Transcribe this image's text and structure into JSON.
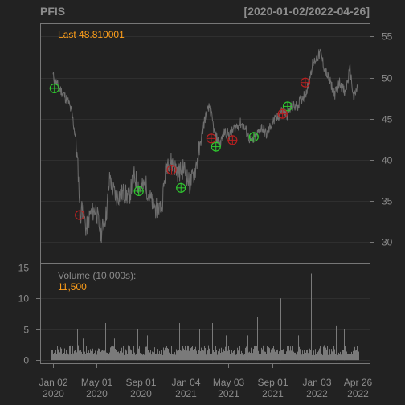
{
  "chart_data": {
    "type": "line",
    "title": "PFIS",
    "date_range": "[2020-01-02/2022-04-26]",
    "colors": {
      "background": "#222222",
      "panel_border": "#777777",
      "grid": "#2f2f2f",
      "text": "#8c8c8c",
      "accent": "#ff9f1a",
      "price_line": "#6e6e6e",
      "volume_bar": "#7a7a7a",
      "buy_marker": "#2fc82f",
      "sell_marker": "#b92020"
    },
    "price_panel": {
      "last_label": "Last 48.810001",
      "y_ticks": [
        30,
        35,
        40,
        45,
        50,
        55
      ],
      "ylim": [
        27.5,
        56.5
      ],
      "grid": true,
      "series": [
        {
          "x": [
            "2020-01-02",
            "2020-01-15",
            "2020-01-31",
            "2020-02-14",
            "2020-02-24",
            "2020-03-05",
            "2020-03-12",
            "2020-03-18",
            "2020-03-23",
            "2020-04-03",
            "2020-04-15",
            "2020-04-30",
            "2020-05-14",
            "2020-05-29",
            "2020-06-08",
            "2020-06-15",
            "2020-06-26",
            "2020-07-15",
            "2020-07-31",
            "2020-08-14",
            "2020-08-31",
            "2020-09-15",
            "2020-09-30",
            "2020-10-15",
            "2020-10-30",
            "2020-11-09",
            "2020-11-16",
            "2020-11-30",
            "2020-12-15",
            "2020-12-31",
            "2021-01-15",
            "2021-01-29",
            "2021-02-12",
            "2021-02-26",
            "2021-03-12",
            "2021-03-26",
            "2021-04-09",
            "2021-04-23",
            "2021-05-07",
            "2021-05-21",
            "2021-06-07",
            "2021-06-21",
            "2021-07-06",
            "2021-07-20",
            "2021-08-03",
            "2021-08-17",
            "2021-08-31",
            "2021-09-14",
            "2021-09-28",
            "2021-10-12",
            "2021-10-26",
            "2021-11-09",
            "2021-11-23",
            "2021-12-07",
            "2021-12-21",
            "2022-01-04",
            "2022-01-13",
            "2022-01-25",
            "2022-02-08",
            "2022-02-22",
            "2022-03-08",
            "2022-03-22",
            "2022-04-05",
            "2022-04-15",
            "2022-04-26"
          ],
          "y": [
            50.2,
            49.0,
            48.0,
            47.0,
            45.5,
            42.5,
            38.5,
            33.0,
            34.5,
            31.5,
            33.5,
            34.0,
            31.0,
            33.5,
            38.0,
            36.5,
            35.5,
            36.0,
            35.5,
            38.0,
            36.5,
            37.0,
            35.0,
            34.0,
            34.5,
            38.5,
            40.0,
            39.5,
            38.5,
            39.0,
            37.0,
            38.5,
            41.5,
            45.0,
            46.5,
            43.0,
            42.0,
            43.5,
            43.0,
            44.0,
            44.5,
            43.5,
            42.0,
            43.0,
            44.0,
            43.0,
            44.5,
            45.0,
            46.0,
            45.5,
            46.5,
            46.5,
            47.5,
            48.5,
            51.5,
            52.5,
            53.0,
            51.0,
            49.5,
            48.0,
            49.5,
            48.0,
            51.0,
            47.5,
            48.81
          ]
        }
      ],
      "buy_signals": [
        {
          "x": "2020-01-06",
          "y": 48.7
        },
        {
          "x": "2020-08-27",
          "y": 36.2
        },
        {
          "x": "2020-12-22",
          "y": 36.6
        },
        {
          "x": "2021-03-29",
          "y": 41.6
        },
        {
          "x": "2021-07-12",
          "y": 42.8
        },
        {
          "x": "2021-10-14",
          "y": 46.5
        }
      ],
      "sell_signals": [
        {
          "x": "2020-03-16",
          "y": 33.3
        },
        {
          "x": "2020-11-26",
          "y": 38.8
        },
        {
          "x": "2021-03-16",
          "y": 42.6
        },
        {
          "x": "2021-05-14",
          "y": 42.4
        },
        {
          "x": "2021-09-30",
          "y": 45.6
        },
        {
          "x": "2021-12-02",
          "y": 49.4
        }
      ]
    },
    "volume_panel": {
      "label": "Volume (10,000s):",
      "last_value": "11,500",
      "y_ticks": [
        0,
        5,
        10,
        15
      ],
      "ylim": [
        -0.5,
        15.5
      ],
      "baseline": 1.8,
      "spikes": [
        {
          "x": "2020-03-09",
          "v": 5.0
        },
        {
          "x": "2020-03-25",
          "v": 3.5
        },
        {
          "x": "2020-05-26",
          "v": 6.0
        },
        {
          "x": "2020-06-19",
          "v": 3.5
        },
        {
          "x": "2020-08-24",
          "v": 5.0
        },
        {
          "x": "2020-09-18",
          "v": 4.0
        },
        {
          "x": "2020-10-28",
          "v": 6.5
        },
        {
          "x": "2020-12-18",
          "v": 6.0
        },
        {
          "x": "2021-02-10",
          "v": 5.0
        },
        {
          "x": "2021-03-19",
          "v": 6.0
        },
        {
          "x": "2021-04-26",
          "v": 4.0
        },
        {
          "x": "2021-06-25",
          "v": 4.0
        },
        {
          "x": "2021-07-22",
          "v": 7.0
        },
        {
          "x": "2021-09-24",
          "v": 10.0
        },
        {
          "x": "2021-11-12",
          "v": 4.0
        },
        {
          "x": "2021-12-17",
          "v": 14.0
        },
        {
          "x": "2022-02-25",
          "v": 5.5
        },
        {
          "x": "2022-03-18",
          "v": 5.0
        }
      ]
    },
    "x_axis": {
      "ticks": [
        {
          "date": "2020-01-02",
          "label1": "Jan 02",
          "label2": "2020"
        },
        {
          "date": "2020-05-01",
          "label1": "May 01",
          "label2": "2020"
        },
        {
          "date": "2020-09-01",
          "label1": "Sep 01",
          "label2": "2020"
        },
        {
          "date": "2021-01-04",
          "label1": "Jan 04",
          "label2": "2021"
        },
        {
          "date": "2021-05-03",
          "label1": "May 03",
          "label2": "2021"
        },
        {
          "date": "2021-09-01",
          "label1": "Sep 01",
          "label2": "2021"
        },
        {
          "date": "2022-01-03",
          "label1": "Jan 03",
          "label2": "2022"
        },
        {
          "date": "2022-04-26",
          "label1": "Apr 26",
          "label2": "2022"
        }
      ]
    }
  }
}
